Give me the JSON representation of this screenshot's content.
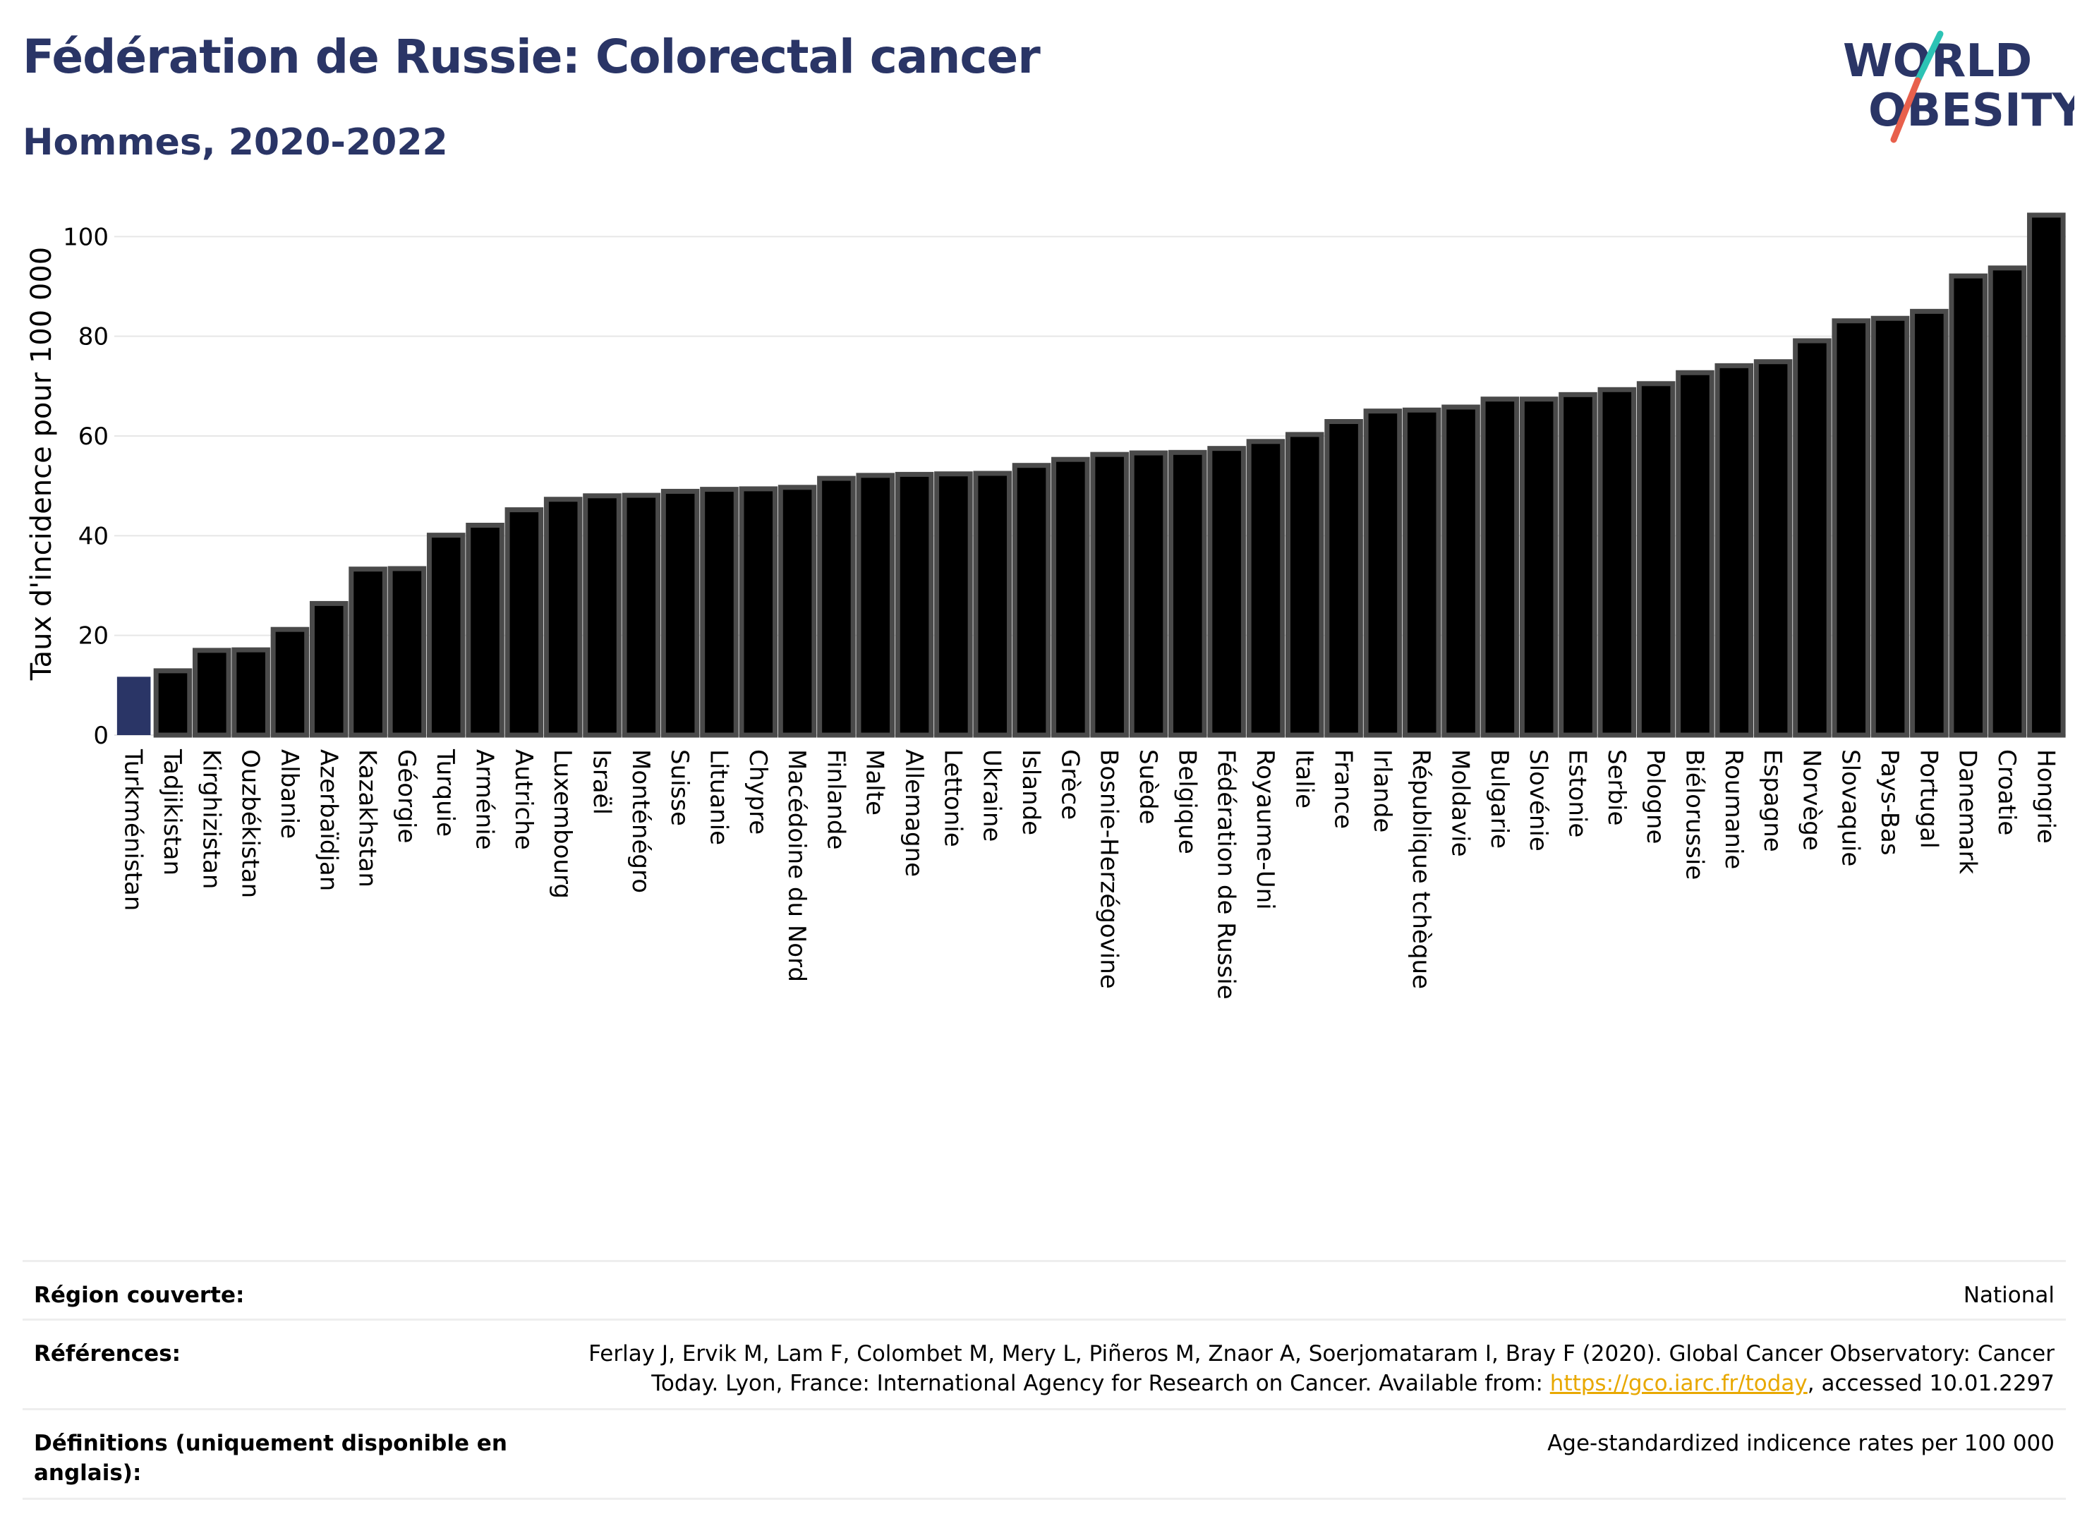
{
  "header": {
    "title": "Fédération de Russie: Colorectal cancer",
    "subtitle": "Hommes, 2020-2022"
  },
  "logo": {
    "line1": "WORLD",
    "line2": "OBESITY"
  },
  "colors": {
    "highlight": "#2a3566",
    "bar": "#000000",
    "bar_stroke": "#4a4a4a",
    "grid": "#e6e6e6",
    "accent_teal": "#2cc3b5",
    "accent_red": "#e8604c"
  },
  "chart_data": {
    "type": "bar",
    "ylabel": "Taux d'incidence pour 100 000",
    "ylim": [
      0,
      105
    ],
    "yticks": [
      0,
      20,
      40,
      60,
      80,
      100
    ],
    "grid": true,
    "highlight": "Turkménistan",
    "categories": [
      "Turkménistan",
      "Tadjikistan",
      "Kirghizistan",
      "Ouzbékistan",
      "Albanie",
      "Azerbaïdjan",
      "Kazakhstan",
      "Géorgie",
      "Turquie",
      "Arménie",
      "Autriche",
      "Luxembourg",
      "Israël",
      "Monténégro",
      "Suisse",
      "Lituanie",
      "Chypre",
      "Macédoine du Nord",
      "Finlande",
      "Malte",
      "Allemagne",
      "Lettonie",
      "Ukraine",
      "Islande",
      "Grèce",
      "Bosnie-Herzégovine",
      "Suède",
      "Belgique",
      "Fédération de Russie",
      "Royaume-Uni",
      "Italie",
      "France",
      "Irlande",
      "République tchèque",
      "Moldavie",
      "Bulgarie",
      "Slovénie",
      "Estonie",
      "Serbie",
      "Pologne",
      "Biélorussie",
      "Roumanie",
      "Espagne",
      "Norvège",
      "Slovaquie",
      "Pays-Bas",
      "Portugal",
      "Danemark",
      "Croatie",
      "Hongrie"
    ],
    "values": [
      11.7,
      12.9,
      17.0,
      17.1,
      21.2,
      26.4,
      33.3,
      33.4,
      40.1,
      42.1,
      45.2,
      47.3,
      48.0,
      48.1,
      48.9,
      49.3,
      49.4,
      49.7,
      51.5,
      52.1,
      52.3,
      52.4,
      52.5,
      54.1,
      55.3,
      56.3,
      56.6,
      56.7,
      57.5,
      58.9,
      60.3,
      62.9,
      65.0,
      65.2,
      65.8,
      67.4,
      67.4,
      68.3,
      69.3,
      70.5,
      72.7,
      74.1,
      74.9,
      79.1,
      83.1,
      83.6,
      85.0,
      92.1,
      93.7,
      104.3
    ]
  },
  "info": {
    "region_label": "Région couverte:",
    "region_value": "National",
    "refs_label": "Références:",
    "refs_text_1": "Ferlay J, Ervik M, Lam F, Colombet M, Mery L, Piñeros M, Znaor A, Soerjomataram I, Bray F (2020). Global Cancer Observatory: Cancer Today. Lyon, France: International Agency for Research on Cancer. Available from: ",
    "refs_link": "https://gco.iarc.fr/today",
    "refs_text_2": ", accessed 10.01.2297",
    "defs_label": "Définitions (uniquement disponible en anglais):",
    "defs_value": "Age-standardized indicence rates per 100 000"
  }
}
